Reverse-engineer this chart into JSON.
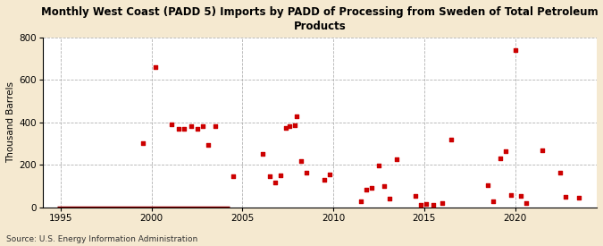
{
  "title": "Monthly West Coast (PADD 5) Imports by PADD of Processing from Sweden of Total Petroleum\nProducts",
  "ylabel": "Thousand Barrels",
  "source": "Source: U.S. Energy Information Administration",
  "background_color": "#f5e9d0",
  "plot_bg_color": "#ffffff",
  "dot_color": "#cc0000",
  "line_color": "#8b0000",
  "xlim": [
    1994.0,
    2024.5
  ],
  "ylim": [
    0,
    800
  ],
  "yticks": [
    0,
    200,
    400,
    600,
    800
  ],
  "xticks": [
    1995,
    2000,
    2005,
    2010,
    2015,
    2020
  ],
  "scatter_x": [
    1999.5,
    2000.2,
    2001.1,
    2001.5,
    2001.8,
    2002.2,
    2002.5,
    2002.8,
    2003.1,
    2003.5,
    2004.5,
    2006.1,
    2006.5,
    2006.8,
    2007.1,
    2007.4,
    2007.6,
    2007.9,
    2008.0,
    2008.2,
    2008.5,
    2009.5,
    2009.8,
    2011.5,
    2011.8,
    2012.1,
    2012.5,
    2012.8,
    2013.1,
    2013.5,
    2014.5,
    2014.8,
    2015.1,
    2015.5,
    2016.0,
    2016.5,
    2018.5,
    2018.8,
    2019.2,
    2019.5,
    2019.8,
    2020.0,
    2020.3,
    2020.6,
    2021.5,
    2022.5,
    2022.8,
    2023.5
  ],
  "scatter_y": [
    300,
    660,
    390,
    370,
    370,
    380,
    370,
    380,
    295,
    380,
    145,
    250,
    145,
    115,
    150,
    375,
    380,
    385,
    430,
    220,
    165,
    130,
    155,
    30,
    85,
    90,
    195,
    100,
    40,
    225,
    55,
    10,
    15,
    10,
    20,
    320,
    105,
    30,
    230,
    265,
    60,
    740,
    55,
    20,
    270,
    165,
    50,
    45
  ],
  "line_x_start": 1994.8,
  "line_x_end": 2004.3,
  "line_y": 0
}
